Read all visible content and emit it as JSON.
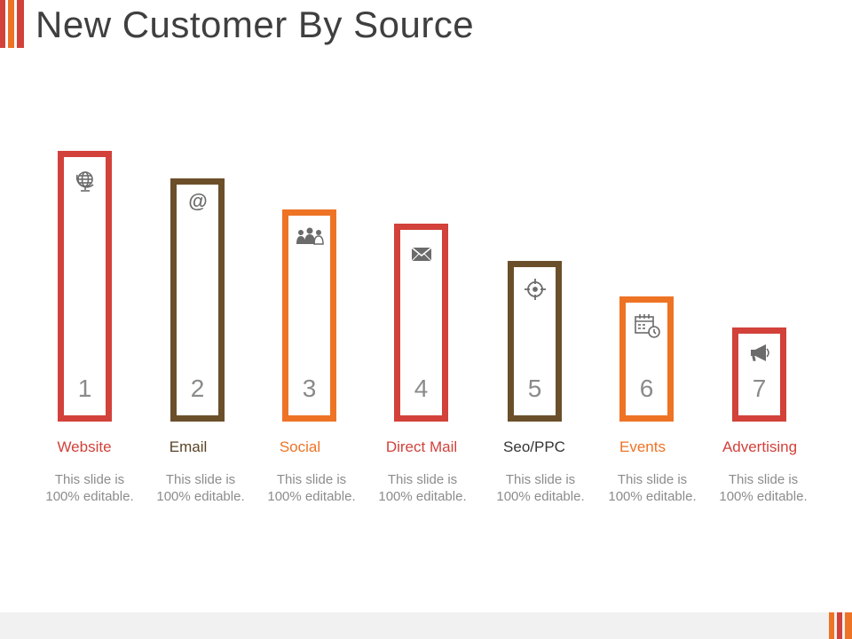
{
  "title": "New Customer By Source",
  "colors": {
    "red": "#d2413a",
    "brown": "#6b4f2a",
    "orange": "#ee7325",
    "icon": "#6b6b6b",
    "text_gray": "#8c8c8c",
    "title": "#3f3f3f"
  },
  "items": [
    {
      "number": "1",
      "label": "Website",
      "icon": "globe-icon",
      "color": "#d2413a",
      "desc_line1": "This slide is",
      "desc_line2": "100% editable."
    },
    {
      "number": "2",
      "label": "Email",
      "icon": "at-sign-icon",
      "color": "#6b4f2a",
      "desc_line1": "This slide is",
      "desc_line2": "100% editable."
    },
    {
      "number": "3",
      "label": "Social",
      "icon": "people-icon",
      "color": "#ee7325",
      "desc_line1": "This slide is",
      "desc_line2": "100% editable."
    },
    {
      "number": "4",
      "label": "Direct Mail",
      "icon": "envelope-icon",
      "color": "#d2413a",
      "desc_line1": "This slide is",
      "desc_line2": "100% editable."
    },
    {
      "number": "5",
      "label": "Seo/PPC",
      "icon": "target-icon",
      "color": "#6b4f2a",
      "desc_line1": "This slide is",
      "desc_line2": "100% editable."
    },
    {
      "number": "6",
      "label": "Events",
      "icon": "calendar-clock-icon",
      "color": "#ee7325",
      "desc_line1": "This slide is",
      "desc_line2": "100% editable."
    },
    {
      "number": "7",
      "label": "Advertising",
      "icon": "megaphone-icon",
      "color": "#d2413a",
      "desc_line1": "This slide is",
      "desc_line2": "100% editable."
    }
  ]
}
